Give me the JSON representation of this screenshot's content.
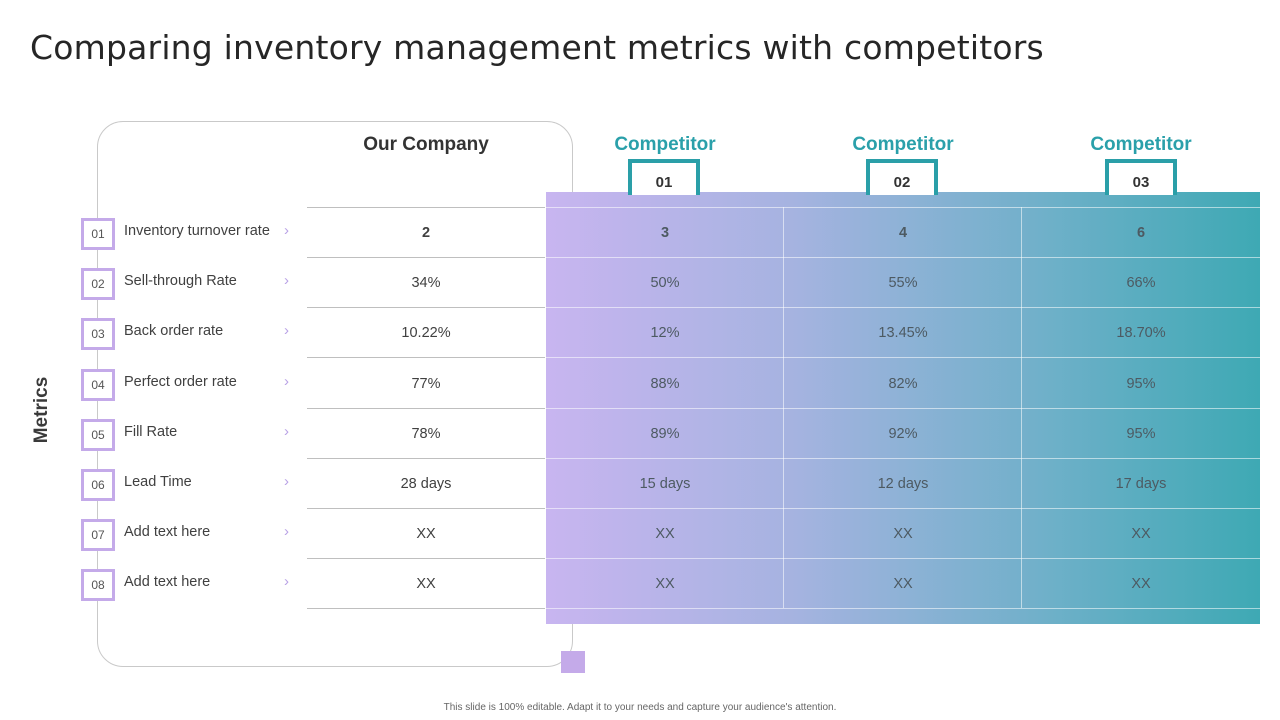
{
  "title": "Comparing inventory management metrics with competitors",
  "axis_label": "Metrics",
  "columns": {
    "ours": "Our Company",
    "competitors": [
      {
        "label": "Competitor",
        "number": "01"
      },
      {
        "label": "Competitor",
        "number": "02"
      },
      {
        "label": "Competitor",
        "number": "03"
      }
    ]
  },
  "rows": [
    {
      "num": "01",
      "name": "Inventory turnover rate",
      "ours": "2",
      "c1": "3",
      "c2": "4",
      "c3": "6"
    },
    {
      "num": "02",
      "name": "Sell-through Rate",
      "ours": "34%",
      "c1": "50%",
      "c2": "55%",
      "c3": "66%"
    },
    {
      "num": "03",
      "name": "Back order rate",
      "ours": "10.22%",
      "c1": "12%",
      "c2": "13.45%",
      "c3": "18.70%"
    },
    {
      "num": "04",
      "name": "Perfect order rate",
      "ours": "77%",
      "c1": "88%",
      "c2": "82%",
      "c3": "95%"
    },
    {
      "num": "05",
      "name": "Fill Rate",
      "ours": "78%",
      "c1": "89%",
      "c2": "92%",
      "c3": "95%"
    },
    {
      "num": "06",
      "name": "Lead Time",
      "ours": "28 days",
      "c1": "15 days",
      "c2": "12 days",
      "c3": "17 days"
    },
    {
      "num": "07",
      "name": "Add text here",
      "ours": "XX",
      "c1": "XX",
      "c2": "XX",
      "c3": "XX"
    },
    {
      "num": "08",
      "name": "Add text here",
      "ours": "XX",
      "c1": "XX",
      "c2": "XX",
      "c3": "XX"
    }
  ],
  "chevron_glyph": "›",
  "footer": "This slide is 100% editable. Adapt it to your needs and capture your audience's attention.",
  "colors": {
    "accent_teal": "#2aa0aa",
    "accent_purple": "#c4aae9"
  }
}
